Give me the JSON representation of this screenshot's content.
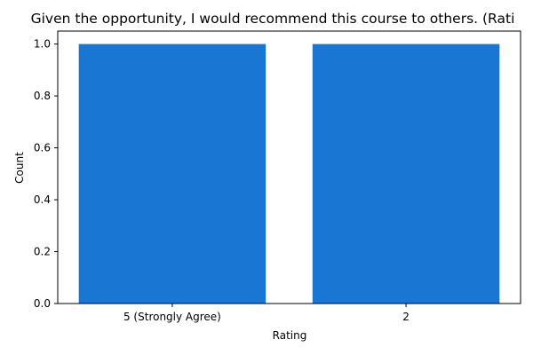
{
  "chart_data": {
    "type": "bar",
    "title": "Given the opportunity, I would recommend this course to others. (Rati",
    "xlabel": "Rating",
    "ylabel": "Count",
    "categories": [
      "5 (Strongly Agree)",
      "2"
    ],
    "values": [
      1.0,
      1.0
    ],
    "ylim": [
      0,
      1.05
    ],
    "yticks": [
      "0.0",
      "0.2",
      "0.4",
      "0.6",
      "0.8",
      "1.0"
    ],
    "ytick_values": [
      0.0,
      0.2,
      0.4,
      0.6,
      0.8,
      1.0
    ],
    "bar_color": "#1976d2",
    "grid": false,
    "legend": "none"
  }
}
